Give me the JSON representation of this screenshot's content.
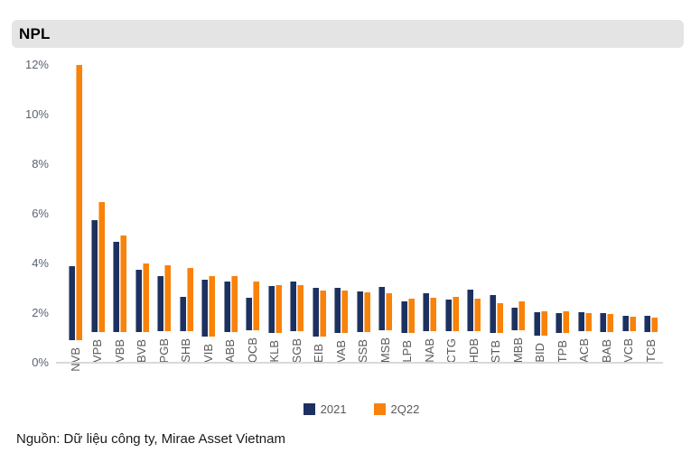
{
  "header": {
    "title": "NPL"
  },
  "chart_data": {
    "type": "bar",
    "title": "NPL",
    "categories": [
      "NVB",
      "VPB",
      "VBB",
      "BVB",
      "PGB",
      "SHB",
      "VIB",
      "ABB",
      "OCB",
      "KLB",
      "SGB",
      "EIB",
      "VAB",
      "SSB",
      "MSB",
      "LPB",
      "NAB",
      "CTG",
      "HDB",
      "STB",
      "MBB",
      "BID",
      "TPB",
      "ACB",
      "BAB",
      "VCB",
      "TCB"
    ],
    "series": [
      {
        "name": "2021",
        "color": "#1d3160",
        "values": [
          3.0,
          4.5,
          3.65,
          2.5,
          2.2,
          1.4,
          2.3,
          2.05,
          1.3,
          1.9,
          2.0,
          1.95,
          1.8,
          1.65,
          1.75,
          1.3,
          1.55,
          1.25,
          1.65,
          1.5,
          0.9,
          0.95,
          0.8,
          0.76,
          0.77,
          0.62,
          0.66
        ]
      },
      {
        "name": "2Q22",
        "color": "#f8820a",
        "values": [
          11.1,
          5.25,
          3.9,
          2.75,
          2.65,
          2.55,
          2.45,
          2.25,
          1.95,
          1.95,
          1.85,
          1.85,
          1.7,
          1.6,
          1.5,
          1.4,
          1.35,
          1.35,
          1.3,
          1.2,
          1.15,
          1.0,
          0.85,
          0.74,
          0.72,
          0.6,
          0.58
        ]
      }
    ],
    "xlabel": "",
    "ylabel": "",
    "ylim": [
      0,
      12
    ],
    "ytick_values": [
      12,
      10,
      8,
      6,
      4,
      2,
      0
    ],
    "ytick_labels": [
      "12%",
      "10%",
      "8%",
      "6%",
      "4%",
      "2%",
      "0%"
    ],
    "grid": false,
    "legend_position": "bottom-center",
    "value_unit": "%"
  },
  "source": {
    "text": "Nguồn: Dữ liệu công ty, Mirae Asset Vietnam"
  },
  "colors": {
    "header_bg": "#e4e4e4",
    "axis_line": "#d9d9d9",
    "tick_text": "#595959",
    "series_2021": "#1d3160",
    "series_2q22": "#f8820a"
  }
}
